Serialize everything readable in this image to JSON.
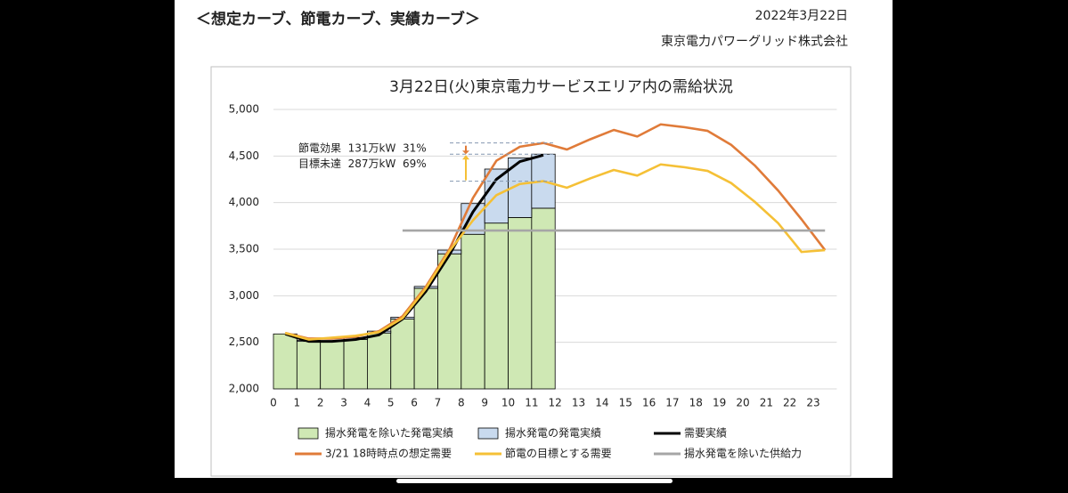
{
  "header": {
    "title": "＜想定カーブ、節電カーブ、実績カーブ＞",
    "date": "2022年3月22日",
    "company": "東京電力パワーグリッド株式会社"
  },
  "chart_data": {
    "type": "bar",
    "title": "3月22日(火)東京電力サービスエリア内の需給状況",
    "categories": [
      "0",
      "1",
      "2",
      "3",
      "4",
      "5",
      "6",
      "7",
      "8",
      "9",
      "10",
      "11",
      "12",
      "13",
      "14",
      "15",
      "16",
      "17",
      "18",
      "19",
      "20",
      "21",
      "22",
      "23"
    ],
    "series": [
      {
        "name": "揚水発電を除いた発電実績",
        "type": "bar",
        "color": "#cfe8b4",
        "values": [
          2590,
          2510,
          2510,
          2530,
          2600,
          2750,
          3080,
          3450,
          3660,
          3780,
          3840,
          3940,
          null,
          null,
          null,
          null,
          null,
          null,
          null,
          null,
          null,
          null,
          null,
          null
        ]
      },
      {
        "name": "揚水発電の発電実績",
        "type": "bar",
        "color": "#c9daee",
        "values": [
          0,
          10,
          0,
          20,
          20,
          20,
          20,
          40,
          330,
          580,
          640,
          580,
          null,
          null,
          null,
          null,
          null,
          null,
          null,
          null,
          null,
          null,
          null,
          null
        ]
      },
      {
        "name": "需要実績",
        "type": "line",
        "color": "#000000",
        "values": [
          2590,
          2510,
          2510,
          2530,
          2580,
          2750,
          3050,
          3440,
          3900,
          4250,
          4440,
          4510,
          null,
          null,
          null,
          null,
          null,
          null,
          null,
          null,
          null,
          null,
          null,
          null
        ]
      },
      {
        "name": "3/21 18時時点の想定需要",
        "type": "line",
        "color": "#e07b39",
        "values": [
          2600,
          2540,
          2540,
          2560,
          2620,
          2780,
          3100,
          3500,
          4050,
          4450,
          4600,
          4640,
          4570,
          4680,
          4780,
          4710,
          4840,
          4810,
          4770,
          4620,
          4400,
          4130,
          3820,
          3490
        ]
      },
      {
        "name": "節電の目標とする需要",
        "type": "line",
        "color": "#f5c036",
        "values": [
          2600,
          2530,
          2550,
          2570,
          2610,
          2760,
          3080,
          3480,
          3810,
          4080,
          4200,
          4230,
          4160,
          4260,
          4350,
          4290,
          4410,
          4380,
          4340,
          4210,
          4010,
          3780,
          3470,
          3490
        ]
      },
      {
        "name": "揚水発電を除いた供給力",
        "type": "line",
        "color": "#a6a6a6",
        "values": [
          null,
          null,
          null,
          null,
          null,
          3700,
          3700,
          3700,
          3700,
          3700,
          3700,
          3700,
          3700,
          3700,
          3700,
          3700,
          3700,
          3700,
          3700,
          3700,
          3700,
          3700,
          3700,
          3700
        ]
      }
    ],
    "annotations": [
      "節電効果  131万kW  31%",
      "目標未達  287万kW  69%"
    ],
    "ylim": [
      2000,
      5000
    ],
    "yticks": [
      {
        "value": 2000,
        "label": "2,000"
      },
      {
        "value": 2500,
        "label": "2,500"
      },
      {
        "value": 3000,
        "label": "3,000"
      },
      {
        "value": 3500,
        "label": "3,500"
      },
      {
        "value": 4000,
        "label": "4,000"
      },
      {
        "value": 4500,
        "label": "4,500"
      },
      {
        "value": 5000,
        "label": "5,000"
      }
    ],
    "grid": true,
    "legend": "bottom"
  }
}
